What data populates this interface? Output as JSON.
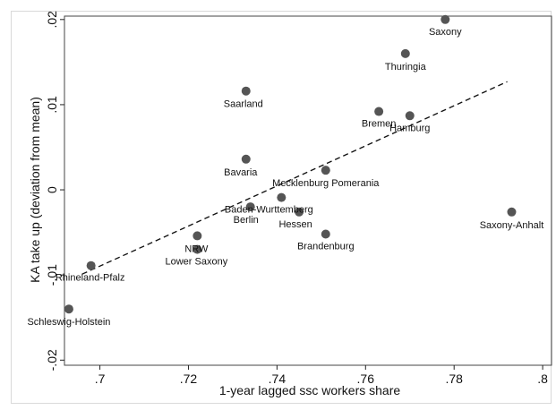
{
  "chart_data": {
    "type": "scatter",
    "xlabel": "1-year lagged ssc workers share",
    "ylabel": "KA take up (deviation from mean)",
    "xlim": [
      0.692,
      0.802
    ],
    "ylim": [
      -0.0206,
      0.0204
    ],
    "x_ticks": [
      0.7,
      0.72,
      0.74,
      0.76,
      0.78,
      0.8
    ],
    "x_tick_labels": [
      ".7",
      ".72",
      ".74",
      ".76",
      ".78",
      ".8"
    ],
    "y_ticks": [
      -0.02,
      -0.01,
      0.0,
      0.01,
      0.02
    ],
    "y_tick_labels": [
      "-.02",
      "-.01",
      "0",
      ".01",
      ".02"
    ],
    "grid": false,
    "legend": "none",
    "fit_line": {
      "style": "dashed",
      "x": [
        0.696,
        0.792
      ],
      "y": [
        -0.0099,
        0.0127
      ]
    },
    "points": [
      {
        "name": "Saxony",
        "x": 0.778,
        "y": 0.02
      },
      {
        "name": "Thuringia",
        "x": 0.769,
        "y": 0.016
      },
      {
        "name": "Saarland",
        "x": 0.733,
        "y": 0.0116
      },
      {
        "name": "Bremen",
        "x": 0.763,
        "y": 0.0092
      },
      {
        "name": "Hamburg",
        "x": 0.77,
        "y": 0.0087
      },
      {
        "name": "Bavaria",
        "x": 0.733,
        "y": 0.0036
      },
      {
        "name": "Mecklenburg Pomerania",
        "x": 0.751,
        "y": 0.0023
      },
      {
        "name": "Baden-Wurttemberg",
        "x": 0.741,
        "y": -0.0009
      },
      {
        "name": "Berlin",
        "x": 0.734,
        "y": -0.002
      },
      {
        "name": "Hessen",
        "x": 0.745,
        "y": -0.0026
      },
      {
        "name": "Saxony-Anhalt",
        "x": 0.793,
        "y": -0.0026
      },
      {
        "name": "Brandenburg",
        "x": 0.751,
        "y": -0.0052
      },
      {
        "name": "NRW",
        "x": 0.722,
        "y": -0.0054
      },
      {
        "name": "Lower Saxony",
        "x": 0.722,
        "y": -0.007
      },
      {
        "name": "Rhineland-Pfalz",
        "x": 0.698,
        "y": -0.0089
      },
      {
        "name": "Schleswig-Holstein",
        "x": 0.693,
        "y": -0.014
      }
    ],
    "colors": {
      "marker": "#555555",
      "line": "#111111",
      "frame": "#444444"
    }
  }
}
